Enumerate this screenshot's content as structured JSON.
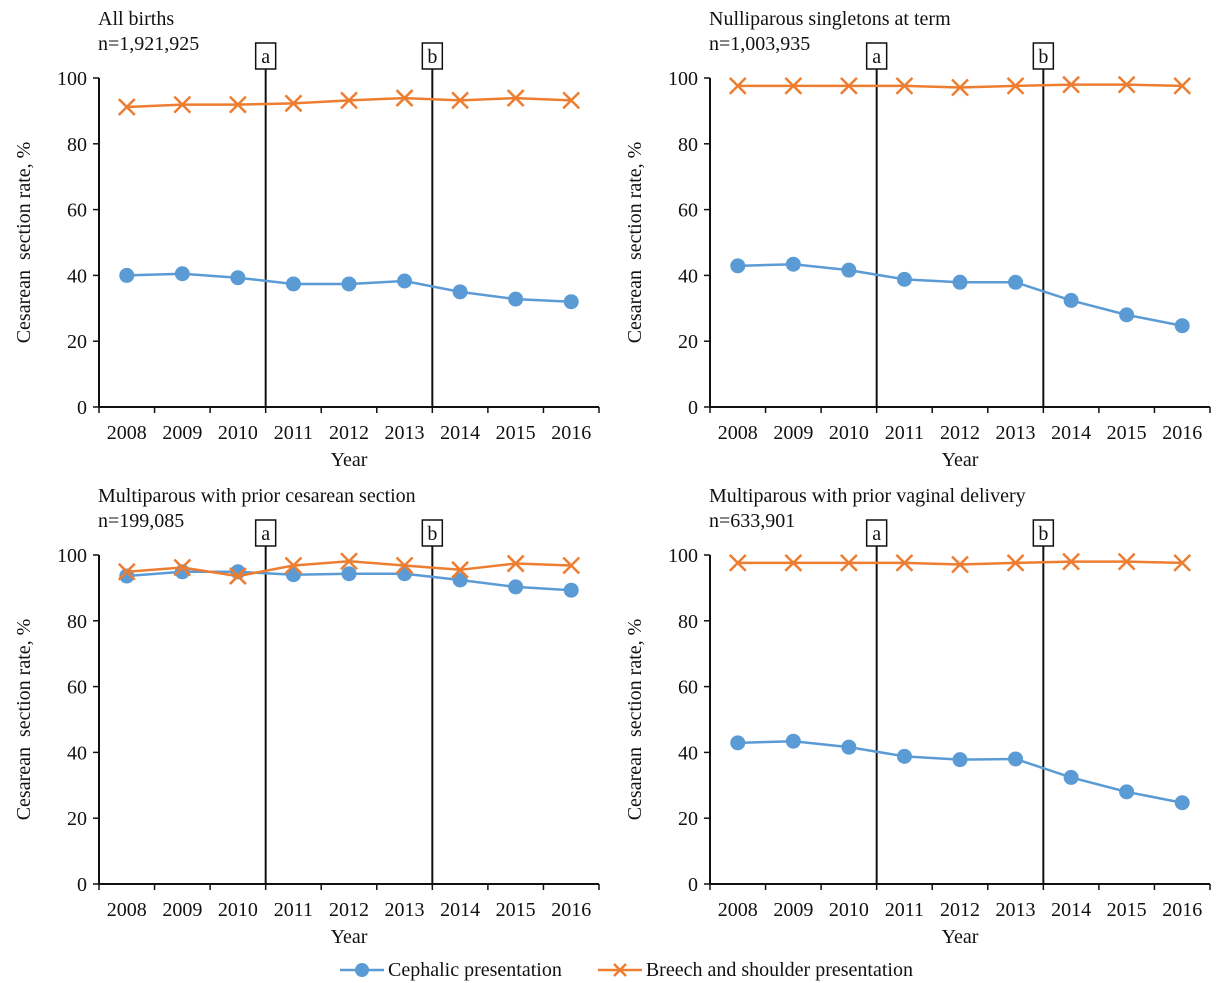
{
  "figure": {
    "legend": [
      {
        "name": "Cephalic presentation",
        "color": "#5b9bd5",
        "marker": "circle"
      },
      {
        "name": "Breech and shoulder presentation",
        "color": "#ed7d31",
        "marker": "x"
      }
    ]
  },
  "chart_data": [
    {
      "type": "line",
      "title": "All births",
      "subtitle": "n=1,921,925",
      "xlabel": "Year",
      "ylabel": "Cesarean  section rate, %",
      "ylim": [
        0,
        100
      ],
      "yticks": [
        0,
        20,
        40,
        60,
        80,
        100
      ],
      "categories": [
        "2008",
        "2009",
        "2010",
        "2011",
        "2012",
        "2013",
        "2014",
        "2015",
        "2016"
      ],
      "series": [
        {
          "name": "Cephalic presentation",
          "values": [
            40.0,
            40.5,
            39.3,
            37.4,
            37.4,
            38.3,
            35.0,
            32.8,
            32.0
          ]
        },
        {
          "name": "Breech and shoulder presentation",
          "values": [
            91.2,
            91.9,
            91.9,
            92.3,
            93.2,
            93.9,
            93.2,
            93.9,
            93.2
          ]
        }
      ],
      "annotations": [
        {
          "label": "a",
          "between": [
            "2010",
            "2011"
          ]
        },
        {
          "label": "b",
          "between": [
            "2013",
            "2014"
          ]
        }
      ],
      "grid": false
    },
    {
      "type": "line",
      "title": "Nulliparous singletons at term",
      "subtitle": "n=1,003,935",
      "xlabel": "Year",
      "ylabel": "Cesarean  section rate, %",
      "ylim": [
        0,
        100
      ],
      "yticks": [
        0,
        20,
        40,
        60,
        80,
        100
      ],
      "categories": [
        "2008",
        "2009",
        "2010",
        "2011",
        "2012",
        "2013",
        "2014",
        "2015",
        "2016"
      ],
      "series": [
        {
          "name": "Cephalic presentation",
          "values": [
            42.9,
            43.4,
            41.6,
            38.8,
            37.9,
            37.9,
            32.4,
            28.0,
            24.7
          ]
        },
        {
          "name": "Breech and shoulder presentation",
          "values": [
            97.6,
            97.6,
            97.6,
            97.6,
            97.1,
            97.6,
            98.0,
            98.0,
            97.6
          ]
        }
      ],
      "annotations": [
        {
          "label": "a",
          "between": [
            "2010",
            "2011"
          ]
        },
        {
          "label": "b",
          "between": [
            "2013",
            "2014"
          ]
        }
      ],
      "grid": false
    },
    {
      "type": "line",
      "title": "Multiparous with prior cesarean section",
      "subtitle": "n=199,085",
      "xlabel": "Year",
      "ylabel": "Cesarean  section rate, %",
      "ylim": [
        0,
        100
      ],
      "yticks": [
        0,
        20,
        40,
        60,
        80,
        100
      ],
      "categories": [
        "2008",
        "2009",
        "2010",
        "2011",
        "2012",
        "2013",
        "2014",
        "2015",
        "2016"
      ],
      "series": [
        {
          "name": "Cephalic presentation",
          "values": [
            93.6,
            94.9,
            94.9,
            94.0,
            94.3,
            94.3,
            92.4,
            90.3,
            89.3
          ]
        },
        {
          "name": "Breech and shoulder presentation",
          "values": [
            94.9,
            96.2,
            93.6,
            96.8,
            98.1,
            96.8,
            95.5,
            97.4,
            96.8
          ]
        }
      ],
      "annotations": [
        {
          "label": "a",
          "between": [
            "2010",
            "2011"
          ]
        },
        {
          "label": "b",
          "between": [
            "2013",
            "2014"
          ]
        }
      ],
      "grid": false
    },
    {
      "type": "line",
      "title": "Multiparous with prior vaginal delivery",
      "subtitle": "n=633,901",
      "xlabel": "Year",
      "ylabel": "Cesarean  section rate, %",
      "ylim": [
        0,
        100
      ],
      "yticks": [
        0,
        20,
        40,
        60,
        80,
        100
      ],
      "categories": [
        "2008",
        "2009",
        "2010",
        "2011",
        "2012",
        "2013",
        "2014",
        "2015",
        "2016"
      ],
      "series": [
        {
          "name": "Cephalic presentation",
          "values": [
            42.9,
            43.4,
            41.6,
            38.8,
            37.8,
            38.0,
            32.4,
            28.0,
            24.7
          ]
        },
        {
          "name": "Breech and shoulder presentation",
          "values": [
            97.6,
            97.6,
            97.6,
            97.6,
            97.1,
            97.6,
            98.0,
            98.0,
            97.6
          ]
        }
      ],
      "annotations": [
        {
          "label": "a",
          "between": [
            "2010",
            "2011"
          ]
        },
        {
          "label": "b",
          "between": [
            "2013",
            "2014"
          ]
        }
      ],
      "grid": false
    }
  ]
}
